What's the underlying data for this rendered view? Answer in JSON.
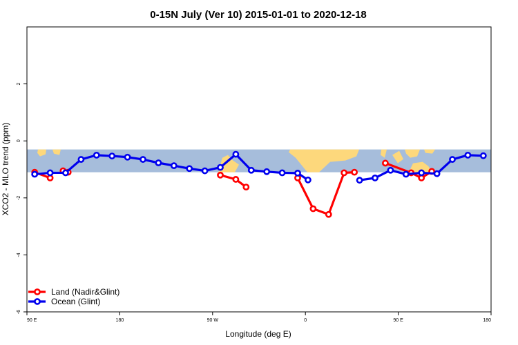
{
  "chart_data": {
    "type": "line",
    "title": "0-15N July (Ver 10)   2015-01-01 to 2020-12-18",
    "xlabel": "Longitude (deg E)",
    "ylabel": "XCO2 - MLO trend (ppm)",
    "xlim": [
      90,
      540
    ],
    "ylim": [
      -6,
      4
    ],
    "x_ticks": [
      {
        "value": 90,
        "label": "90 E"
      },
      {
        "value": 180,
        "label": "180"
      },
      {
        "value": 270,
        "label": "90 W"
      },
      {
        "value": 360,
        "label": "0"
      },
      {
        "value": 450,
        "label": "90 E"
      },
      {
        "value": 540,
        "label": "180"
      }
    ],
    "y_ticks": [
      {
        "value": -6,
        "label": "-6"
      },
      {
        "value": -4,
        "label": "-4"
      },
      {
        "value": -2,
        "label": "-2"
      },
      {
        "value": 0,
        "label": "0"
      },
      {
        "value": 2,
        "label": "2"
      }
    ],
    "background_band": {
      "y_range": [
        -1.1,
        -0.3
      ],
      "ocean_color": "#a6bddb",
      "land_color": "#fdd87c"
    },
    "legend_position": "bottom-left",
    "series": [
      {
        "name": "Land (Nadir&Glint)",
        "color": "#ff0000",
        "segments": [
          [
            [
              97.5,
              -1.1
            ],
            [
              112.5,
              -1.3
            ]
          ],
          [
            [
              125,
              -1.05
            ],
            [
              130,
              -1.1
            ]
          ],
          [
            [
              277.5,
              -1.2
            ],
            [
              292.5,
              -1.35
            ],
            [
              302.5,
              -1.62
            ]
          ],
          [
            [
              352.5,
              -1.3
            ],
            [
              367.5,
              -2.38
            ],
            [
              382.5,
              -2.58
            ],
            [
              397.5,
              -1.12
            ],
            [
              407.5,
              -1.1
            ]
          ],
          [
            [
              437.5,
              -0.78
            ],
            [
              462.5,
              -1.12
            ],
            [
              472.5,
              -1.3
            ],
            [
              482.5,
              -1.07
            ]
          ]
        ]
      },
      {
        "name": "Ocean (Glint)",
        "color": "#0000ee",
        "segments": [
          [
            [
              97.5,
              -1.17
            ],
            [
              112.5,
              -1.12
            ],
            [
              127.5,
              -1.12
            ],
            [
              142.5,
              -0.65
            ],
            [
              157.5,
              -0.5
            ],
            [
              172.5,
              -0.53
            ],
            [
              187.5,
              -0.57
            ],
            [
              202.5,
              -0.65
            ],
            [
              217.5,
              -0.77
            ],
            [
              232.5,
              -0.87
            ],
            [
              247.5,
              -0.97
            ],
            [
              262.5,
              -1.05
            ],
            [
              277.5,
              -0.93
            ],
            [
              292.5,
              -0.47
            ],
            [
              307.5,
              -1.03
            ],
            [
              322.5,
              -1.08
            ],
            [
              337.5,
              -1.12
            ],
            [
              352.5,
              -1.13
            ],
            [
              362.5,
              -1.37
            ]
          ],
          [
            [
              412.5,
              -1.38
            ],
            [
              427.5,
              -1.3
            ],
            [
              442.5,
              -1.03
            ],
            [
              457.5,
              -1.17
            ],
            [
              472.5,
              -1.12
            ],
            [
              487.5,
              -1.15
            ],
            [
              502.5,
              -0.65
            ],
            [
              517.5,
              -0.5
            ],
            [
              532.5,
              -0.52
            ]
          ]
        ]
      }
    ]
  }
}
